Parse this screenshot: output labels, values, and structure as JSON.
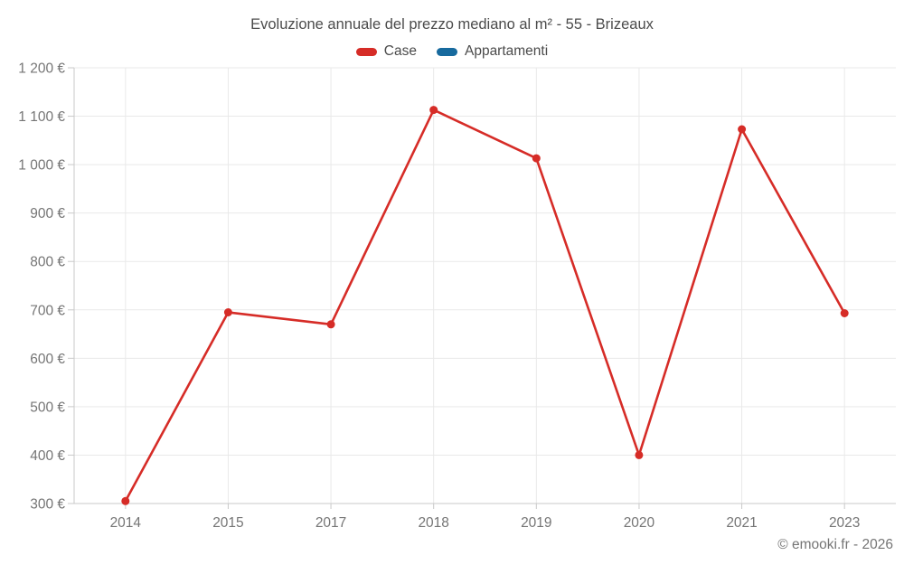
{
  "header": {
    "title": "Evoluzione annuale del prezzo mediano al m² - 55 - Brizeaux"
  },
  "footer": {
    "credit": "© emooki.fr - 2026"
  },
  "colors": {
    "case_red": "#d62c27",
    "appartamenti_blue": "#176a9e",
    "grid": "#e9e9e9",
    "axis": "#c9c9c9",
    "tick_label": "#757575",
    "heading_text": "#4b4b4b"
  },
  "chart_data": {
    "type": "line",
    "title": "Evoluzione annuale del prezzo mediano al m² - 55 - Brizeaux",
    "categories": [
      "2014",
      "2015",
      "2017",
      "2018",
      "2019",
      "2020",
      "2021",
      "2023"
    ],
    "series": [
      {
        "name": "Case",
        "color": "#d62c27",
        "values": [
          305,
          695,
          670,
          1113,
          1013,
          400,
          1073,
          693
        ]
      },
      {
        "name": "Appartamenti",
        "color": "#176a9e",
        "values": [
          null,
          null,
          null,
          null,
          null,
          null,
          null,
          null
        ]
      }
    ],
    "xlabel": "",
    "ylabel": "",
    "ylim": [
      300,
      1200
    ],
    "ytick_step": 100,
    "ytick_suffix": " €",
    "grid": true,
    "legend_position": "top"
  }
}
